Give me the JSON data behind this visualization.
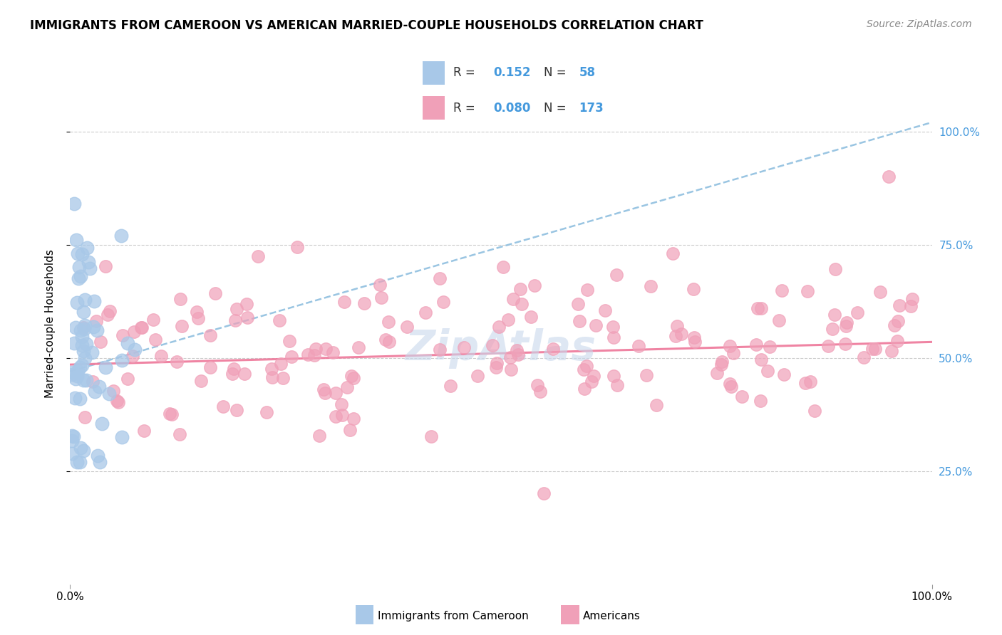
{
  "title": "IMMIGRANTS FROM CAMEROON VS AMERICAN MARRIED-COUPLE HOUSEHOLDS CORRELATION CHART",
  "source": "Source: ZipAtlas.com",
  "ylabel": "Married-couple Households",
  "legend_label1": "Immigrants from Cameroon",
  "legend_label2": "Americans",
  "R1": "0.152",
  "N1": "58",
  "R2": "0.080",
  "N2": "173",
  "color_blue": "#a8c8e8",
  "color_pink": "#f0a0b8",
  "color_blue_text": "#4499dd",
  "trend_blue_color": "#88bbdd",
  "trend_pink_color": "#ee7799",
  "grid_color": "#cccccc",
  "watermark_color": "#c8d8ec",
  "blue_trend_x0": 0,
  "blue_trend_y0": 47,
  "blue_trend_x1": 100,
  "blue_trend_y1": 102,
  "pink_trend_x0": 0,
  "pink_trend_y0": 48.5,
  "pink_trend_x1": 100,
  "pink_trend_y1": 53.5,
  "ymin": 0,
  "ymax": 115,
  "xmin": 0,
  "xmax": 100,
  "yticks": [
    25,
    50,
    75,
    100
  ],
  "yticklabels": [
    "25.0%",
    "50.0%",
    "75.0%",
    "100.0%"
  ]
}
